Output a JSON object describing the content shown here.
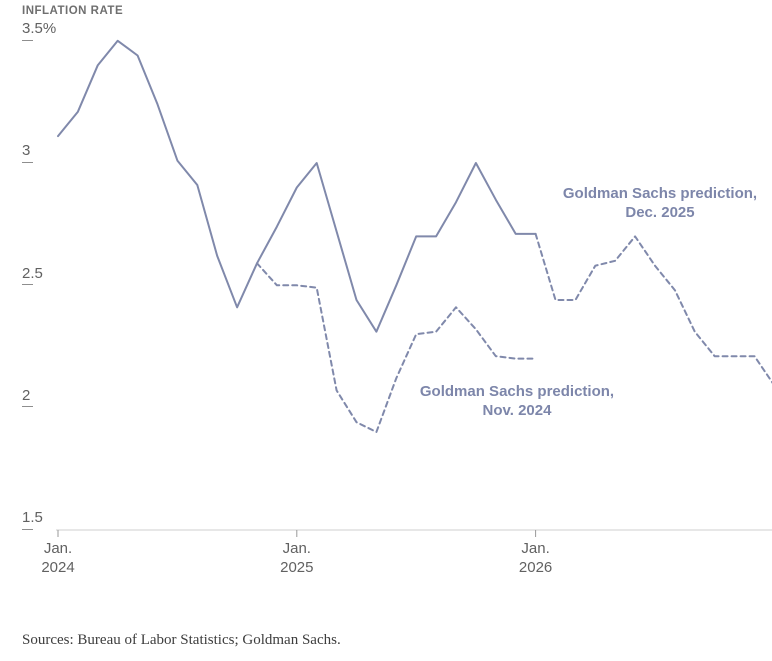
{
  "header": {
    "title": "INFLATION RATE"
  },
  "source_note": "Sources: Bureau of Labor Statistics; Goldman Sachs.",
  "colors": {
    "line": "#8089ab",
    "annotation_text": "#7d86aa",
    "axis_line": "#cfcfcf",
    "tick": "#999999",
    "axis_label": "#616161",
    "title_text": "#6f6f6f",
    "source_text": "#3d3d3d",
    "background": "#ffffff"
  },
  "chart_data": {
    "type": "line",
    "title": "INFLATION RATE",
    "xlabel": "",
    "ylabel": "",
    "ylim": [
      1.5,
      3.5
    ],
    "xlim_months": [
      0,
      36
    ],
    "x_unit": "months since Jan. 2024",
    "grid": false,
    "legend_position": "inline-annotations",
    "y_axis_ticks": [
      {
        "label": "3.5%",
        "value": 3.5
      },
      {
        "label": "3",
        "value": 3.0
      },
      {
        "label": "2.5",
        "value": 2.5
      },
      {
        "label": "2",
        "value": 2.0
      },
      {
        "label": "1.5",
        "value": 1.5
      }
    ],
    "x_axis_ticks": [
      {
        "month_index": 0,
        "line1": "Jan.",
        "line2": "2024"
      },
      {
        "month_index": 12,
        "line1": "Jan.",
        "line2": "2025"
      },
      {
        "month_index": 24,
        "line1": "Jan.",
        "line2": "2026"
      }
    ],
    "series": [
      {
        "name": "Goldman Sachs prediction, Dec. 2025",
        "parts": [
          {
            "style": "solid",
            "dashed": false,
            "start_month": 0,
            "values": [
              3.07,
              3.17,
              3.36,
              3.46,
              3.4,
              3.2,
              2.97,
              2.87,
              2.58,
              2.37,
              2.55,
              2.7,
              2.86,
              2.96,
              2.68,
              2.4,
              2.27,
              2.46,
              2.66,
              2.66,
              2.8,
              2.96,
              2.81,
              2.67,
              2.67
            ]
          },
          {
            "style": "dashed",
            "dashed": true,
            "start_month": 24,
            "values": [
              2.67,
              2.4,
              2.4,
              2.54,
              2.56,
              2.66,
              2.54,
              2.44,
              2.27,
              2.17,
              2.17,
              2.17,
              2.05
            ]
          }
        ]
      },
      {
        "name": "Goldman Sachs prediction, Nov. 2024",
        "parts": [
          {
            "style": "dashed",
            "dashed": true,
            "start_month": 10,
            "values": [
              2.55,
              2.46,
              2.46,
              2.45,
              2.03,
              1.9,
              1.86,
              2.08,
              2.26,
              2.27,
              2.37,
              2.28,
              2.17,
              2.16,
              2.16
            ]
          }
        ]
      }
    ],
    "annotations": [
      {
        "line1": "Goldman Sachs prediction,",
        "line2": "Dec. 2025"
      },
      {
        "line1": "Goldman Sachs prediction,",
        "line2": "Nov. 2024"
      }
    ]
  }
}
